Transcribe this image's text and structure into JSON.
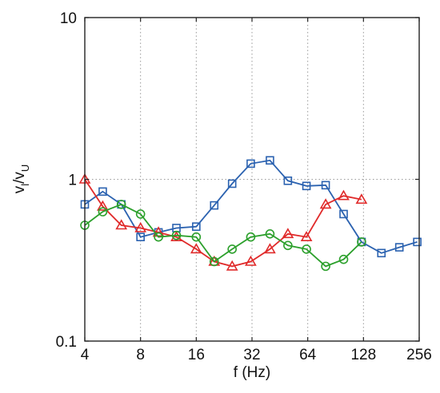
{
  "chart_data": {
    "type": "line",
    "xlabel": "f (Hz)",
    "ylabel": {
      "main_1": "v",
      "sub_1": "l",
      "slash": "/",
      "main_2": "v",
      "sub_2": "U"
    },
    "xscale": "log2",
    "yscale": "log10",
    "xlim": [
      4,
      256
    ],
    "ylim": [
      0.1,
      10
    ],
    "x_ticks": [
      4,
      8,
      16,
      32,
      64,
      128,
      256
    ],
    "x_tick_labels": [
      "4",
      "8",
      "16",
      "32",
      "64",
      "128",
      "256"
    ],
    "y_ticks": [
      0.1,
      1,
      10
    ],
    "y_tick_labels": [
      "0.1",
      "1",
      "10"
    ],
    "grid": true,
    "legend": "none",
    "series": [
      {
        "color": "#2b62b0",
        "marker": "square",
        "x": [
          4,
          5,
          6.3,
          8,
          10,
          12.5,
          16,
          20,
          25,
          31.5,
          40,
          50,
          63,
          80,
          100,
          125,
          160,
          200,
          250
        ],
        "y": [
          0.7,
          0.84,
          0.7,
          0.44,
          0.47,
          0.5,
          0.51,
          0.69,
          0.94,
          1.25,
          1.31,
          0.98,
          0.91,
          0.92,
          0.61,
          0.41,
          0.35,
          0.38,
          0.41
        ]
      },
      {
        "color": "#e02a2a",
        "marker": "triangle",
        "x": [
          4,
          5,
          6.3,
          8,
          10,
          12.5,
          16,
          20,
          25,
          31.5,
          40,
          50,
          63,
          80,
          100,
          125
        ],
        "y": [
          1.0,
          0.68,
          0.52,
          0.5,
          0.47,
          0.44,
          0.37,
          0.31,
          0.29,
          0.31,
          0.37,
          0.46,
          0.44,
          0.7,
          0.79,
          0.75
        ]
      },
      {
        "color": "#2ca02c",
        "marker": "circle",
        "x": [
          4,
          5,
          6.3,
          8,
          10,
          12.5,
          16,
          20,
          25,
          31.5,
          40,
          50,
          63,
          80,
          100,
          125
        ],
        "y": [
          0.52,
          0.63,
          0.7,
          0.61,
          0.44,
          0.45,
          0.44,
          0.31,
          0.37,
          0.44,
          0.46,
          0.39,
          0.37,
          0.29,
          0.32,
          0.41
        ]
      }
    ]
  }
}
